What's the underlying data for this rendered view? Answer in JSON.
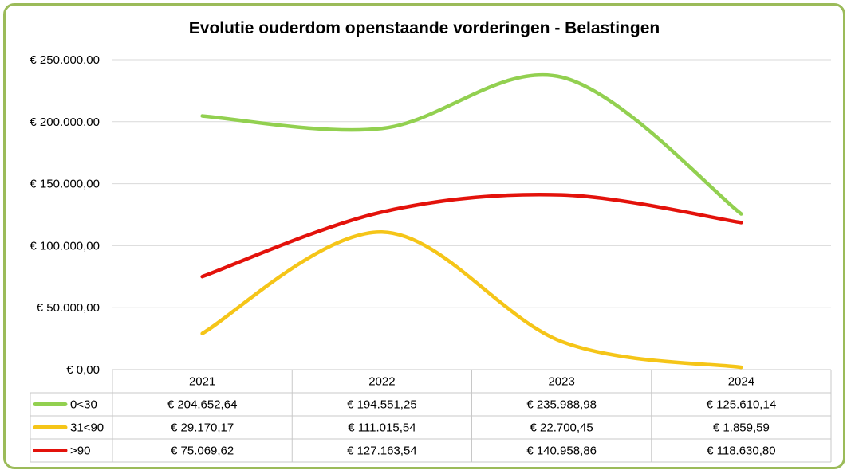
{
  "chart_data": {
    "type": "line",
    "title": "Evolutie ouderdom openstaande vorderingen - Belastingen",
    "categories": [
      "2021",
      "2022",
      "2023",
      "2024"
    ],
    "ylim": [
      0,
      250000
    ],
    "y_ticks": [
      0,
      50000,
      100000,
      150000,
      200000,
      250000
    ],
    "y_tick_labels": [
      "€ 0,00",
      "€ 50.000,00",
      "€ 100.000,00",
      "€ 150.000,00",
      "€ 200.000,00",
      "€ 250.000,00"
    ],
    "grid": true,
    "legend": "data-table",
    "series": [
      {
        "name": "0<30",
        "color": "#92d050",
        "values": [
          204652.64,
          194551.25,
          235988.98,
          125610.14
        ],
        "labels": [
          "€ 204.652,64",
          "€ 194.551,25",
          "€ 235.988,98",
          "€ 125.610,14"
        ]
      },
      {
        "name": "31<90",
        "color": "#f5c518",
        "values": [
          29170.17,
          111015.54,
          22700.45,
          1859.59
        ],
        "labels": [
          "€ 29.170,17",
          "€ 111.015,54",
          "€ 22.700,45",
          "€ 1.859,59"
        ]
      },
      {
        "name": ">90",
        "color": "#e3120b",
        "values": [
          75069.62,
          127163.54,
          140958.86,
          118630.8
        ],
        "labels": [
          "€ 75.069,62",
          "€ 127.163,54",
          "€ 140.958,86",
          "€ 118.630,80"
        ]
      }
    ]
  }
}
